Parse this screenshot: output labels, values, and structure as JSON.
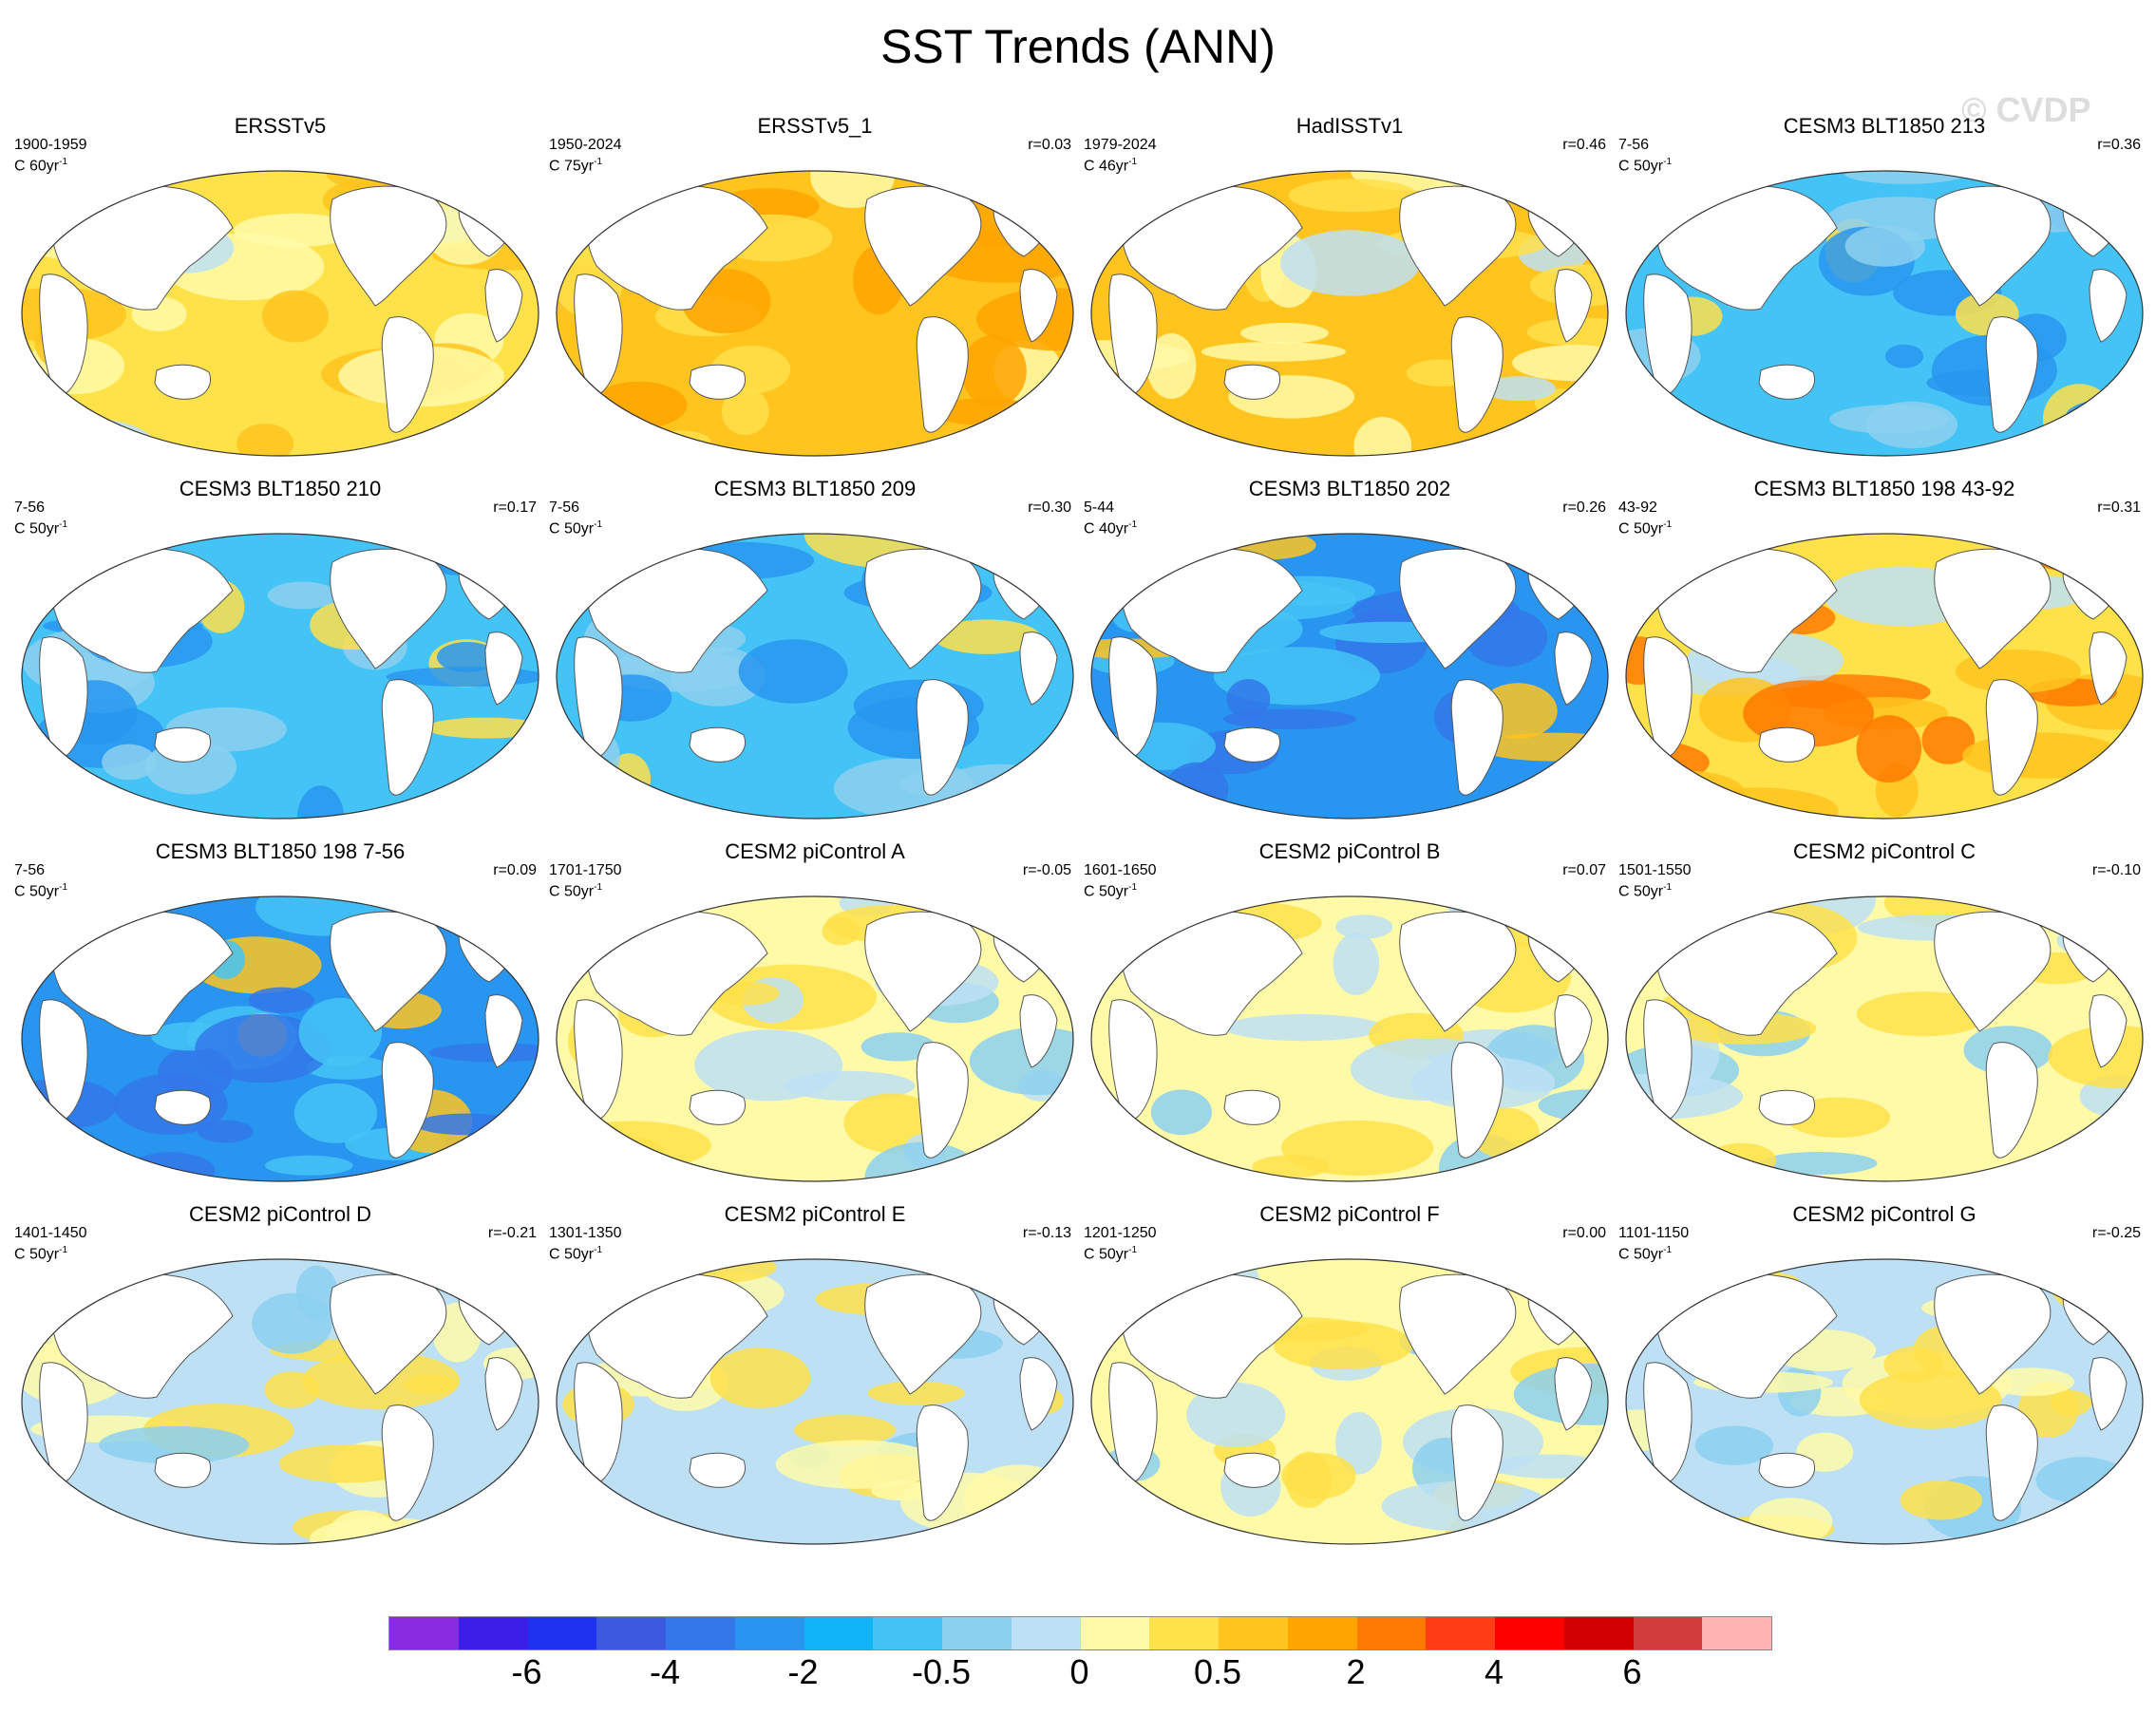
{
  "title": "SST Trends (ANN)",
  "watermark": "© CVDP",
  "panels": [
    {
      "title": "ERSSTv5",
      "period": "1900-1959",
      "units": "C 60yr",
      "r": "",
      "scheme": "warm-light"
    },
    {
      "title": "ERSSTv5_1",
      "period": "1950-2024",
      "units": "C 75yr",
      "r": "r=0.03",
      "scheme": "warm-strong"
    },
    {
      "title": "HadISSTv1",
      "period": "1979-2024",
      "units": "C 46yr",
      "r": "r=0.46",
      "scheme": "warm-mixed"
    },
    {
      "title": "CESM3 BLT1850 213",
      "period": "7-56",
      "units": "C 50yr",
      "r": "r=0.36",
      "scheme": "cool-strong"
    },
    {
      "title": "CESM3 BLT1850 210",
      "period": "7-56",
      "units": "C 50yr",
      "r": "r=0.17",
      "scheme": "cool-strong"
    },
    {
      "title": "CESM3 BLT1850 209",
      "period": "7-56",
      "units": "C 50yr",
      "r": "r=0.30",
      "scheme": "cool-strong"
    },
    {
      "title": "CESM3 BLT1850 202",
      "period": "5-44",
      "units": "C 40yr",
      "r": "r=0.26",
      "scheme": "cool-deep"
    },
    {
      "title": "CESM3 BLT1850 198 43-92",
      "period": "43-92",
      "units": "C 50yr",
      "r": "r=0.31",
      "scheme": "warm-hot"
    },
    {
      "title": "CESM3 BLT1850 198 7-56",
      "period": "7-56",
      "units": "C 50yr",
      "r": "r=0.09",
      "scheme": "cool-deep"
    },
    {
      "title": "CESM2 piControl A",
      "period": "1701-1750",
      "units": "C 50yr",
      "r": "r=-0.05",
      "scheme": "mixed"
    },
    {
      "title": "CESM2 piControl B",
      "period": "1601-1650",
      "units": "C 50yr",
      "r": "r=0.07",
      "scheme": "mixed"
    },
    {
      "title": "CESM2 piControl C",
      "period": "1501-1550",
      "units": "C 50yr",
      "r": "r=-0.10",
      "scheme": "mixed"
    },
    {
      "title": "CESM2 piControl D",
      "period": "1401-1450",
      "units": "C 50yr",
      "r": "r=-0.21",
      "scheme": "mixed-cool"
    },
    {
      "title": "CESM2 piControl E",
      "period": "1301-1350",
      "units": "C 50yr",
      "r": "r=-0.13",
      "scheme": "mixed-cool"
    },
    {
      "title": "CESM2 piControl F",
      "period": "1201-1250",
      "units": "C 50yr",
      "r": "r=0.00",
      "scheme": "mixed"
    },
    {
      "title": "CESM2 piControl G",
      "period": "1101-1150",
      "units": "C 50yr",
      "r": "r=-0.25",
      "scheme": "mixed-cool"
    }
  ],
  "units_exponent": "-1",
  "colorbar": {
    "colors": [
      "#8a2be2",
      "#3b1ee8",
      "#1e32f0",
      "#3c5ae0",
      "#3278ea",
      "#2896f0",
      "#12b4f8",
      "#44c4f6",
      "#8cd0f0",
      "#bde0f4",
      "#fffaa8",
      "#ffe14a",
      "#ffc41e",
      "#ffa500",
      "#ff7a00",
      "#ff3c14",
      "#ff0000",
      "#d20000",
      "#d23c3c",
      "#ffb4b4"
    ],
    "labels": [
      "-6",
      "-4",
      "-2",
      "-0.5",
      "0",
      "0.5",
      "2",
      "4",
      "6"
    ],
    "label_boundaries": [
      2,
      4,
      6,
      8,
      10,
      12,
      14,
      16,
      18
    ]
  },
  "scheme_colors": {
    "warm-light": {
      "base": "#ffe14a",
      "a": "#ffc41e",
      "b": "#fffaa8",
      "c": "#bde0f4"
    },
    "warm-strong": {
      "base": "#ffc41e",
      "a": "#ffa500",
      "b": "#ffe14a",
      "c": "#fffaa8"
    },
    "warm-mixed": {
      "base": "#ffc41e",
      "a": "#ffe14a",
      "b": "#fffaa8",
      "c": "#bde0f4"
    },
    "warm-hot": {
      "base": "#ffe14a",
      "a": "#ffc41e",
      "b": "#ff7a00",
      "c": "#bde0f4"
    },
    "cool-strong": {
      "base": "#44c4f6",
      "a": "#8cd0f0",
      "b": "#2896f0",
      "c": "#ffe14a"
    },
    "cool-deep": {
      "base": "#2896f0",
      "a": "#44c4f6",
      "b": "#3278ea",
      "c": "#ffc41e"
    },
    "mixed": {
      "base": "#fffaa8",
      "a": "#bde0f4",
      "b": "#ffe14a",
      "c": "#8cd0f0"
    },
    "mixed-cool": {
      "base": "#bde0f4",
      "a": "#fffaa8",
      "b": "#ffe14a",
      "c": "#8cd0f0"
    }
  }
}
